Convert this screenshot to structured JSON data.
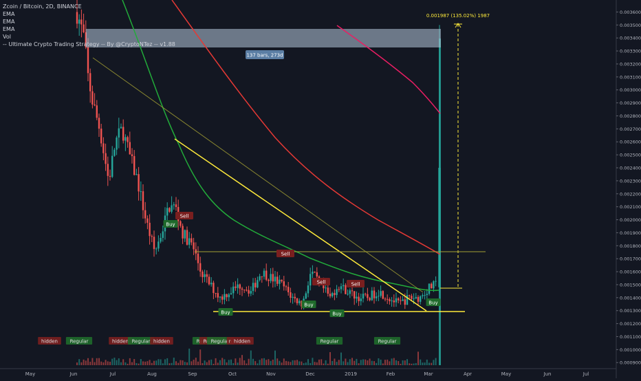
{
  "header": {
    "symbol_line": "Zcoin / Bitcoin, 2D, BINANCE",
    "indicators": [
      "EMA",
      "EMA",
      "EMA",
      "Vol",
      "-- Ultimate Crypto Trading Strategy -- By @CryptoNTez -- v1.88"
    ]
  },
  "measure": {
    "range_label": "137 bars, 273d",
    "move_label": "0.001987 (135.02%) 1987"
  },
  "colors": {
    "background": "#131722",
    "up": "#26a69a",
    "down": "#ef5350",
    "ema_fast": "#22ab3a",
    "ema_mid": "#e53935",
    "ema_slow": "#e91e63",
    "trendline": "#ffeb3b",
    "axis_text": "#b2b5be"
  },
  "chart_data": {
    "type": "candlestick",
    "y_axis": {
      "ticks": [
        "0.003600",
        "0.003500",
        "0.003400",
        "0.003300",
        "0.003200",
        "0.003100",
        "0.003000",
        "0.002900",
        "0.002800",
        "0.002700",
        "0.002600",
        "0.002500",
        "0.002400",
        "0.002300",
        "0.002200",
        "0.002100",
        "0.002000",
        "0.001900",
        "0.001800",
        "0.001700",
        "0.001600",
        "0.001500",
        "0.001400",
        "0.001300",
        "0.001200",
        "0.001100",
        "0.001000",
        "0.000900"
      ],
      "range": [
        0.00088,
        0.00365
      ]
    },
    "x_axis": {
      "ticks": [
        "May",
        "Jun",
        "Jul",
        "Aug",
        "Sep",
        "Oct",
        "Nov",
        "Dec",
        "2019",
        "Feb",
        "Mar",
        "Apr",
        "May",
        "Jun",
        "Jul"
      ]
    },
    "last_candle": {
      "open": 0.00148,
      "high": 0.0035,
      "low": 0.00144,
      "close": 0.0024
    },
    "trendlines": [
      {
        "name": "descending-resistance",
        "from": {
          "date": "Aug",
          "price": 0.0026
        },
        "to": {
          "date": "Mar",
          "price": 0.0013
        }
      },
      {
        "name": "support",
        "from": {
          "date": "Sep",
          "price": 0.0013
        },
        "to": {
          "date": "Apr",
          "price": 0.0013
        }
      },
      {
        "name": "horizontal-resistance",
        "price": 0.00175
      }
    ],
    "signals": [
      {
        "label": "Buy",
        "type": "buy",
        "date": "Aug"
      },
      {
        "label": "Sell",
        "type": "sell",
        "date": "Aug"
      },
      {
        "label": "Buy",
        "type": "buy",
        "date": "Sep"
      },
      {
        "label": "Sell",
        "type": "sell",
        "date": "Nov"
      },
      {
        "label": "Sell",
        "type": "sell",
        "date": "Dec"
      },
      {
        "label": "Buy",
        "type": "buy",
        "date": "Dec"
      },
      {
        "label": "Buy",
        "type": "buy",
        "date": "2019"
      },
      {
        "label": "Sell",
        "type": "sell",
        "date": "2019"
      },
      {
        "label": "Buy",
        "type": "buy",
        "date": "Mar"
      }
    ],
    "divergences": [
      {
        "label": "hidden",
        "type": "bearish",
        "date": "May"
      },
      {
        "label": "Regular",
        "type": "bullish",
        "date": "Jun"
      },
      {
        "label": "hidden",
        "type": "bearish",
        "date": "Jul"
      },
      {
        "label": "Regular",
        "type": "bullish",
        "date": "Jul"
      },
      {
        "label": "hidden",
        "type": "bearish",
        "date": "Aug"
      },
      {
        "label": "Regular",
        "type": "bullish",
        "date": "Sep"
      },
      {
        "label": "Regular",
        "type": "bearish",
        "date": "Sep"
      },
      {
        "label": "Regular",
        "type": "bullish",
        "date": "Sep"
      },
      {
        "label": "n",
        "type": "bearish",
        "date": "Sep"
      },
      {
        "label": "hidden",
        "type": "bearish",
        "date": "Oct"
      },
      {
        "label": "Regular",
        "type": "bullish",
        "date": "Dec"
      },
      {
        "label": "Regular",
        "type": "bullish",
        "date": "Feb"
      }
    ]
  }
}
